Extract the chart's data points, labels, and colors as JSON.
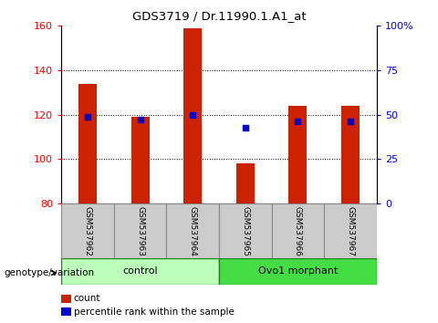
{
  "title": "GDS3719 / Dr.11990.1.A1_at",
  "samples": [
    "GSM537962",
    "GSM537963",
    "GSM537964",
    "GSM537965",
    "GSM537966",
    "GSM537967"
  ],
  "bar_heights": [
    134,
    119,
    159,
    98,
    124,
    124
  ],
  "percentile_left_axis": [
    119,
    118,
    120,
    114,
    117,
    117
  ],
  "ylim_left": [
    80,
    160
  ],
  "ylim_right": [
    0,
    100
  ],
  "yticks_left": [
    80,
    100,
    120,
    140,
    160
  ],
  "yticks_right": [
    0,
    25,
    50,
    75,
    100
  ],
  "bar_color": "#cc2200",
  "percentile_color": "#0000cc",
  "groups": [
    {
      "label": "control",
      "indices": [
        0,
        1,
        2
      ],
      "facecolor": "#bbffbb",
      "edgecolor": "#228822"
    },
    {
      "label": "Ovo1 morphant",
      "indices": [
        3,
        4,
        5
      ],
      "facecolor": "#44dd44",
      "edgecolor": "#228822"
    }
  ],
  "group_label": "genotype/variation",
  "legend_count_label": "count",
  "legend_percentile_label": "percentile rank within the sample",
  "bar_width": 0.35,
  "sample_box_color": "#cccccc",
  "sample_box_edge": "#888888"
}
